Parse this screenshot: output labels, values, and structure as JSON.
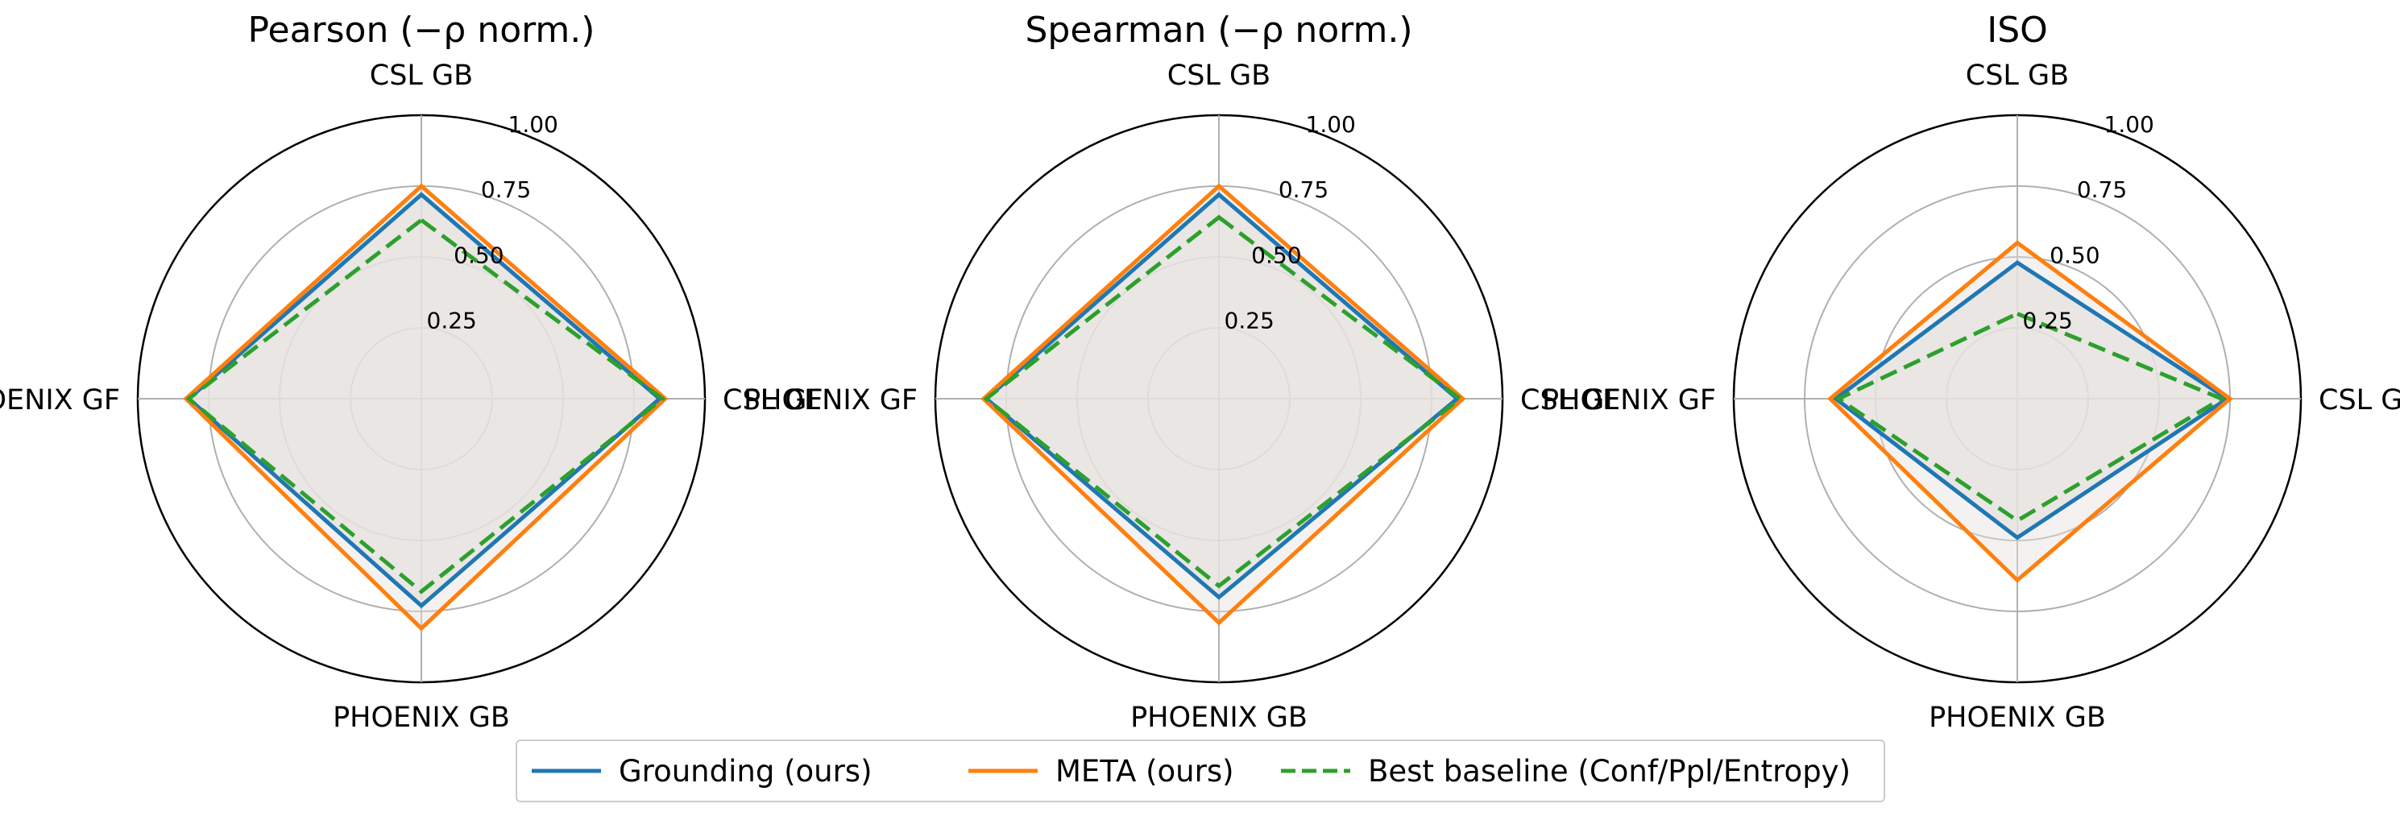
{
  "chart_data": [
    {
      "type": "radar",
      "title": "Pearson (−ρ norm.)",
      "axes": [
        "CSL GB",
        "CSL GF",
        "PHOENIX GB",
        "PHOENIX GF"
      ],
      "rlim": [
        0,
        1
      ],
      "rticks": [
        0.25,
        0.5,
        0.75,
        1.0
      ],
      "rtick_labels": [
        "0.25",
        "0.50",
        "0.75",
        "1.00"
      ],
      "series": [
        {
          "name": "Grounding (ours)",
          "values": [
            0.72,
            0.84,
            0.73,
            0.82
          ]
        },
        {
          "name": "META (ours)",
          "values": [
            0.75,
            0.86,
            0.81,
            0.83
          ]
        },
        {
          "name": "Best baseline (Conf/Ppl/Entropy)",
          "values": [
            0.63,
            0.85,
            0.68,
            0.82
          ]
        }
      ]
    },
    {
      "type": "radar",
      "title": "Spearman (−ρ norm.)",
      "axes": [
        "CSL GB",
        "CSL GF",
        "PHOENIX GB",
        "PHOENIX GF"
      ],
      "rlim": [
        0,
        1
      ],
      "rticks": [
        0.25,
        0.5,
        0.75,
        1.0
      ],
      "rtick_labels": [
        "0.25",
        "0.50",
        "0.75",
        "1.00"
      ],
      "series": [
        {
          "name": "Grounding (ours)",
          "values": [
            0.72,
            0.84,
            0.7,
            0.82
          ]
        },
        {
          "name": "META (ours)",
          "values": [
            0.75,
            0.86,
            0.79,
            0.83
          ]
        },
        {
          "name": "Best baseline (Conf/Ppl/Entropy)",
          "values": [
            0.64,
            0.85,
            0.66,
            0.82
          ]
        }
      ]
    },
    {
      "type": "radar",
      "title": "ISO",
      "axes": [
        "CSL GB",
        "CSL GF",
        "PHOENIX GB",
        "PHOENIX GF"
      ],
      "rlim": [
        0,
        1
      ],
      "rticks": [
        0.25,
        0.5,
        0.75,
        1.0
      ],
      "rtick_labels": [
        "0.25",
        "0.50",
        "0.75",
        "1.00"
      ],
      "series": [
        {
          "name": "Grounding (ours)",
          "values": [
            0.48,
            0.74,
            0.49,
            0.64
          ]
        },
        {
          "name": "META (ours)",
          "values": [
            0.55,
            0.75,
            0.64,
            0.66
          ]
        },
        {
          "name": "Best baseline (Conf/Ppl/Entropy)",
          "values": [
            0.3,
            0.72,
            0.43,
            0.63
          ]
        }
      ]
    }
  ],
  "legend": [
    {
      "label": "Grounding (ours)",
      "color": "#1f77b4",
      "style": "solid"
    },
    {
      "label": "META (ours)",
      "color": "#ff7f0e",
      "style": "solid"
    },
    {
      "label": "Best baseline (Conf/Ppl/Entropy)",
      "color": "#2ca02c",
      "style": "dashed"
    }
  ],
  "colors": {
    "fill": "#e6e3e0",
    "grid": "#b0b0b0",
    "frame": "#000000"
  }
}
